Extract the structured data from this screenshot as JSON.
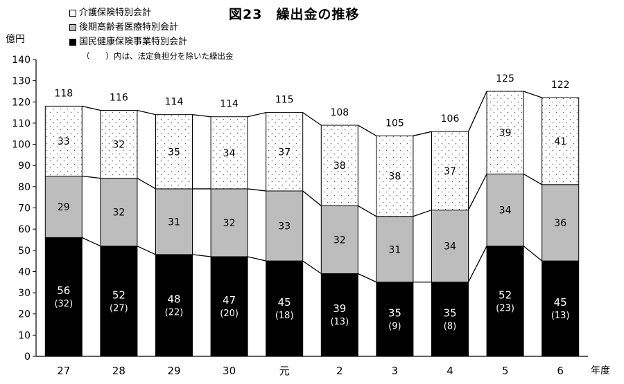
{
  "title": "図23　繰出金の推移",
  "y_unit": "億円",
  "x_unit": "年度",
  "legend": [
    {
      "label": "介護保険特別会計",
      "color": "#ffffff"
    },
    {
      "label": "後期高齢者医療特別会計",
      "color": "#bdbdbd"
    },
    {
      "label": "国民健康保険事業特別会計",
      "color": "#000000"
    }
  ],
  "note": "（　　）内は、法定負担分を除いた繰出金",
  "chart_data": {
    "type": "bar",
    "stacked": true,
    "categories": [
      "27",
      "28",
      "29",
      "30",
      "元",
      "2",
      "3",
      "4",
      "5",
      "6"
    ],
    "series": [
      {
        "name": "国民健康保険事業特別会計",
        "values": [
          56,
          52,
          48,
          47,
          45,
          39,
          35,
          35,
          52,
          45
        ],
        "color": "#000000"
      },
      {
        "name": "後期高齢者医療特別会計",
        "values": [
          29,
          32,
          31,
          32,
          33,
          32,
          31,
          34,
          34,
          36
        ],
        "color": "#bdbdbd"
      },
      {
        "name": "介護保険特別会計",
        "values": [
          33,
          32,
          35,
          34,
          37,
          38,
          38,
          37,
          39,
          41
        ],
        "color": "#ffffff"
      }
    ],
    "nhi_excluding_statutory": [
      "(32)",
      "(27)",
      "(22)",
      "(20)",
      "(18)",
      "(13)",
      "(9)",
      "(8)",
      "(23)",
      "(13)"
    ],
    "totals": [
      118,
      116,
      114,
      114,
      115,
      108,
      105,
      106,
      125,
      122
    ],
    "ylim": [
      0,
      140
    ],
    "yticks": [
      0,
      10,
      20,
      30,
      40,
      50,
      60,
      70,
      80,
      90,
      100,
      110,
      120,
      130,
      140
    ],
    "grid": false
  }
}
